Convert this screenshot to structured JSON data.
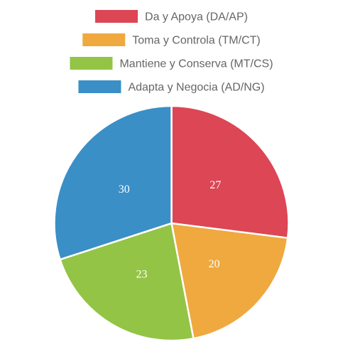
{
  "chart_data": {
    "type": "pie",
    "categories": [
      "Da y Apoya (DA/AP)",
      "Toma y Controla (TM/CT)",
      "Mantiene y Conserva (MT/CS)",
      "Adapta y Negocia (AD/NG)"
    ],
    "values": [
      27,
      20,
      23,
      30
    ],
    "colors": [
      "#dc4655",
      "#efa93f",
      "#93c446",
      "#3a8fc6"
    ],
    "start": "top",
    "direction": "clockwise",
    "legend_position": "top",
    "title": "",
    "data_labels": [
      "27",
      "20",
      "23",
      "30"
    ]
  }
}
